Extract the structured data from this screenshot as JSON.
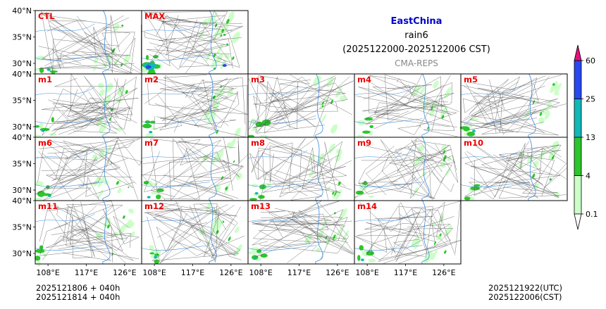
{
  "chart_data": {
    "type": "map-panel-grid",
    "title": "EastChina",
    "variable": "rain6",
    "period": "(2025122000-2025122006 CST)",
    "source": "CMA-REPS",
    "panels": [
      "CTL",
      "MAX",
      "m1",
      "m2",
      "m3",
      "m4",
      "m5",
      "m6",
      "m7",
      "m8",
      "m9",
      "m10",
      "m11",
      "m12",
      "m13",
      "m14"
    ],
    "lat_ticks": [
      "40°N",
      "35°N",
      "30°N"
    ],
    "lon_ticks": [
      "108°E",
      "117°E",
      "126°E"
    ],
    "lat_values": [
      40,
      35,
      30
    ],
    "lon_values": [
      108,
      117,
      126
    ],
    "lat_range": [
      28,
      40
    ],
    "lon_range": [
      105,
      130
    ],
    "colorbar": {
      "levels": [
        "0.1",
        "4",
        "13",
        "25",
        "60"
      ],
      "colors": [
        "#ccffc8",
        "#2cc62c",
        "#10b8b8",
        "#2848f0",
        "#e6107e"
      ],
      "extend": "both",
      "under_color": "#ffffff"
    },
    "footer_left": [
      "2025121806  +  040h",
      "2025121814  +  040h"
    ],
    "footer_right": [
      "2025121922(UTC)",
      "2025122006(CST)"
    ]
  },
  "colors": {
    "title": "#0000cc",
    "panel_label": "#ee0000",
    "source": "#888888",
    "river": "#3b8de0",
    "border": "#555555"
  }
}
